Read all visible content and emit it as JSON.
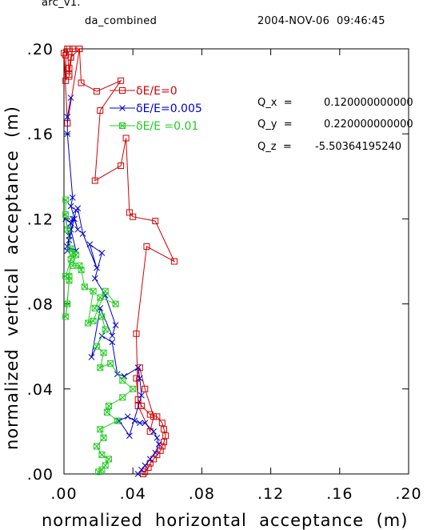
{
  "header": {
    "run_name": "arc_v1.",
    "file_name": "da_combined",
    "timestamp": "2004-NOV-06  09:46:45"
  },
  "params": [
    {
      "label": "Q_x  =",
      "value": "0.120000000000"
    },
    {
      "label": "Q_y  =",
      "value": "0.220000000000"
    },
    {
      "label": "Q_z  =",
      "value": "-5.50364195240"
    }
  ],
  "chart_data": {
    "type": "line",
    "title": "",
    "xlabel": "normalized  horizontal  acceptance  (m)",
    "ylabel": "normalized  vertical  acceptance  (m)",
    "xlim": [
      0.0,
      0.2
    ],
    "ylim": [
      0.0,
      0.2
    ],
    "xticks": [
      ".00",
      ".04",
      ".08",
      ".12",
      ".16",
      ".20"
    ],
    "yticks": [
      ".00",
      ".04",
      ".08",
      ".12",
      ".16",
      ".20"
    ],
    "legend_position": "top-left",
    "grid": false,
    "series": [
      {
        "name": "δE/E=0",
        "color": "#d40000",
        "marker": "open-square",
        "x": [
          0.046,
          0.047,
          0.049,
          0.05,
          0.052,
          0.054,
          0.056,
          0.057,
          0.058,
          0.059,
          0.058,
          0.057,
          0.054,
          0.05,
          0.045,
          0.043,
          0.042,
          0.044,
          0.047,
          0.052,
          0.05,
          0.043,
          0.042,
          0.048,
          0.064,
          0.053,
          0.04,
          0.038,
          0.036,
          0.033,
          0.018,
          0.021,
          0.033,
          0.019,
          0.01,
          0.009,
          0.004,
          0.003,
          0.003,
          0.005,
          0.004,
          0.003,
          0.002,
          0.001,
          0.001,
          0.0,
          0.002,
          0.009,
          0.003
        ],
        "y": [
          0.0,
          0.001,
          0.003,
          0.005,
          0.007,
          0.009,
          0.011,
          0.013,
          0.015,
          0.018,
          0.021,
          0.024,
          0.027,
          0.028,
          0.032,
          0.035,
          0.045,
          0.05,
          0.04,
          0.027,
          0.02,
          0.032,
          0.066,
          0.107,
          0.1,
          0.119,
          0.121,
          0.123,
          0.158,
          0.145,
          0.138,
          0.171,
          0.185,
          0.18,
          0.184,
          0.2,
          0.196,
          0.191,
          0.188,
          0.2,
          0.196,
          0.187,
          0.2,
          0.197,
          0.185,
          0.198,
          0.165,
          0.2,
          0.2
        ]
      },
      {
        "name": "δE/E=0.005",
        "color": "#0000cc",
        "marker": "x-cross",
        "x": [
          0.043,
          0.045,
          0.047,
          0.05,
          0.053,
          0.055,
          0.054,
          0.052,
          0.047,
          0.044,
          0.041,
          0.037,
          0.032,
          0.038,
          0.045,
          0.044,
          0.043,
          0.035,
          0.031,
          0.028,
          0.022,
          0.016,
          0.021,
          0.028,
          0.03,
          0.024,
          0.018,
          0.022,
          0.015,
          0.019,
          0.011,
          0.008,
          0.007,
          0.003,
          0.002,
          0.004,
          0.005,
          0.004,
          0.001,
          0.003,
          0.002,
          0.007,
          0.004,
          0.006,
          0.008,
          0.004,
          0.005,
          0.002,
          0.002,
          0.004
        ],
        "y": [
          0.0,
          0.002,
          0.004,
          0.007,
          0.01,
          0.014,
          0.017,
          0.02,
          0.024,
          0.024,
          0.025,
          0.027,
          0.025,
          0.018,
          0.037,
          0.045,
          0.05,
          0.046,
          0.047,
          0.062,
          0.065,
          0.055,
          0.078,
          0.065,
          0.07,
          0.084,
          0.092,
          0.104,
          0.108,
          0.097,
          0.113,
          0.125,
          0.124,
          0.11,
          0.105,
          0.118,
          0.12,
          0.118,
          0.12,
          0.112,
          0.107,
          0.105,
          0.115,
          0.12,
          0.115,
          0.126,
          0.13,
          0.16,
          0.168,
          0.177
        ]
      },
      {
        "name": "δE/E =0.01",
        "color": "#22cc22",
        "marker": "crossed-square",
        "x": [
          0.02,
          0.022,
          0.024,
          0.026,
          0.022,
          0.019,
          0.023,
          0.021,
          0.031,
          0.025,
          0.026,
          0.034,
          0.04,
          0.034,
          0.027,
          0.021,
          0.023,
          0.019,
          0.024,
          0.022,
          0.018,
          0.021,
          0.03,
          0.024,
          0.017,
          0.014,
          0.017,
          0.012,
          0.01,
          0.009,
          0.005,
          0.007,
          0.004,
          0.003,
          0.002,
          0.001,
          0.003,
          0.001,
          0.005,
          0.004,
          0.002,
          0.001,
          0.001
        ],
        "y": [
          0.001,
          0.002,
          0.004,
          0.007,
          0.009,
          0.013,
          0.017,
          0.021,
          0.025,
          0.029,
          0.032,
          0.036,
          0.04,
          0.044,
          0.052,
          0.05,
          0.057,
          0.06,
          0.068,
          0.074,
          0.078,
          0.083,
          0.08,
          0.086,
          0.072,
          0.071,
          0.086,
          0.088,
          0.096,
          0.098,
          0.098,
          0.103,
          0.101,
          0.093,
          0.08,
          0.074,
          0.091,
          0.093,
          0.104,
          0.106,
          0.115,
          0.122,
          0.129
        ]
      }
    ]
  }
}
